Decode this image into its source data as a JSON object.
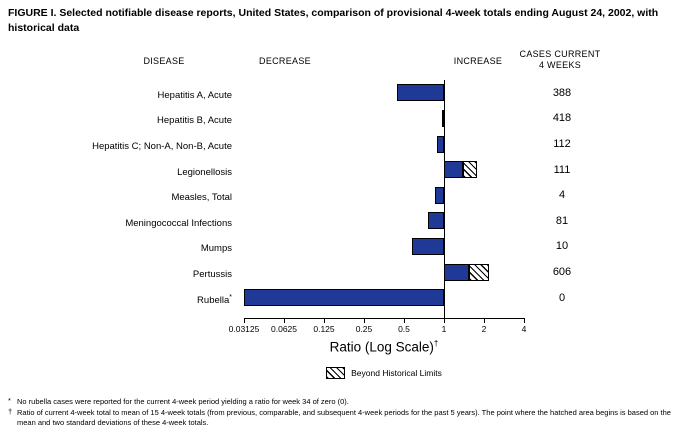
{
  "figure": {
    "title": "FIGURE I. Selected notifiable disease reports, United States, comparison of provisional 4-week totals ending August 24, 2002, with historical data"
  },
  "headers": {
    "disease": "DISEASE",
    "decrease": "DECREASE",
    "increase": "INCREASE",
    "cases_line1": "CASES CURRENT",
    "cases_line2": "4 WEEKS"
  },
  "chart_data": {
    "type": "bar",
    "orientation": "horizontal",
    "scale": "log2",
    "xlim": [
      0.03125,
      4
    ],
    "baseline": 1,
    "x_ticks": [
      "0.03125",
      "0.0625",
      "0.125",
      "0.25",
      "0.5",
      "1",
      "2",
      "4"
    ],
    "xlabel": "Ratio (Log Scale)",
    "xlabel_superscript": "†",
    "bar_color": "#1e3a96",
    "legend": {
      "label": "Beyond Historical Limits",
      "swatch": "hatched"
    },
    "rows": [
      {
        "disease": "Hepatitis A, Acute",
        "ratio": 0.44,
        "cases": "388",
        "beyond_limits": false
      },
      {
        "disease": "Hepatitis B, Acute",
        "ratio": 0.96,
        "cases": "418",
        "beyond_limits": false
      },
      {
        "disease": "Hepatitis C; Non-A, Non-B, Acute",
        "ratio": 0.88,
        "cases": "112",
        "beyond_limits": false
      },
      {
        "disease": "Legionellosis",
        "ratio": 1.77,
        "hatch_start": 1.39,
        "cases": "111",
        "beyond_limits": true
      },
      {
        "disease": "Measles, Total",
        "ratio": 0.85,
        "cases": "4",
        "beyond_limits": false
      },
      {
        "disease": "Meningococcal Infections",
        "ratio": 0.76,
        "cases": "81",
        "beyond_limits": false
      },
      {
        "disease": "Mumps",
        "ratio": 0.57,
        "cases": "10",
        "beyond_limits": false
      },
      {
        "disease": "Pertussis",
        "ratio": 2.18,
        "hatch_start": 1.54,
        "cases": "606",
        "beyond_limits": true
      },
      {
        "disease": "Rubella",
        "label_superscript": "*",
        "ratio": 0.03125,
        "cases": "0",
        "beyond_limits": false
      }
    ]
  },
  "footnotes": [
    {
      "marker": "*",
      "text": "No rubella cases were reported for the current 4-week period yielding a ratio for week 34 of zero (0)."
    },
    {
      "marker": "†",
      "text": "Ratio of current 4-week total to mean of 15 4-week totals (from previous, comparable, and subsequent 4-week periods for the past 5 years). The point where the hatched area begins is based on the mean and two standard deviations of these 4-week totals."
    }
  ]
}
